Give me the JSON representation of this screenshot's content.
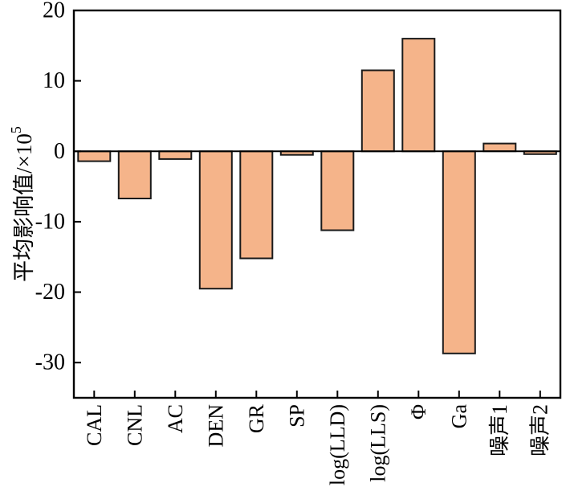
{
  "figure": {
    "background": "#ffffff"
  },
  "chart_data": {
    "type": "bar",
    "title": "",
    "xlabel": "",
    "ylabel": "平均影响值/×10⁵",
    "ylabel_render": {
      "main": "平均影响值/×10",
      "sup": "5"
    },
    "categories": [
      "CAL",
      "CNL",
      "AC",
      "DEN",
      "GR",
      "SP",
      "log(LLD)",
      "log(LLS)",
      "Φ",
      "Ga",
      "噪声1",
      "噪声2"
    ],
    "values": [
      -1.4,
      -6.7,
      -1.1,
      -19.5,
      -15.2,
      -0.5,
      -11.2,
      11.5,
      16.0,
      -28.7,
      1.1,
      -0.4
    ],
    "yticks": [
      20,
      10,
      0,
      -10,
      -20,
      -30
    ],
    "ylim": [
      -35,
      20
    ],
    "grid": false,
    "legend": null,
    "bar_color": "#F5B48A",
    "bar_edge_color": "#1a1a1a",
    "axis_color": "#000000",
    "tick_direction": "in"
  }
}
